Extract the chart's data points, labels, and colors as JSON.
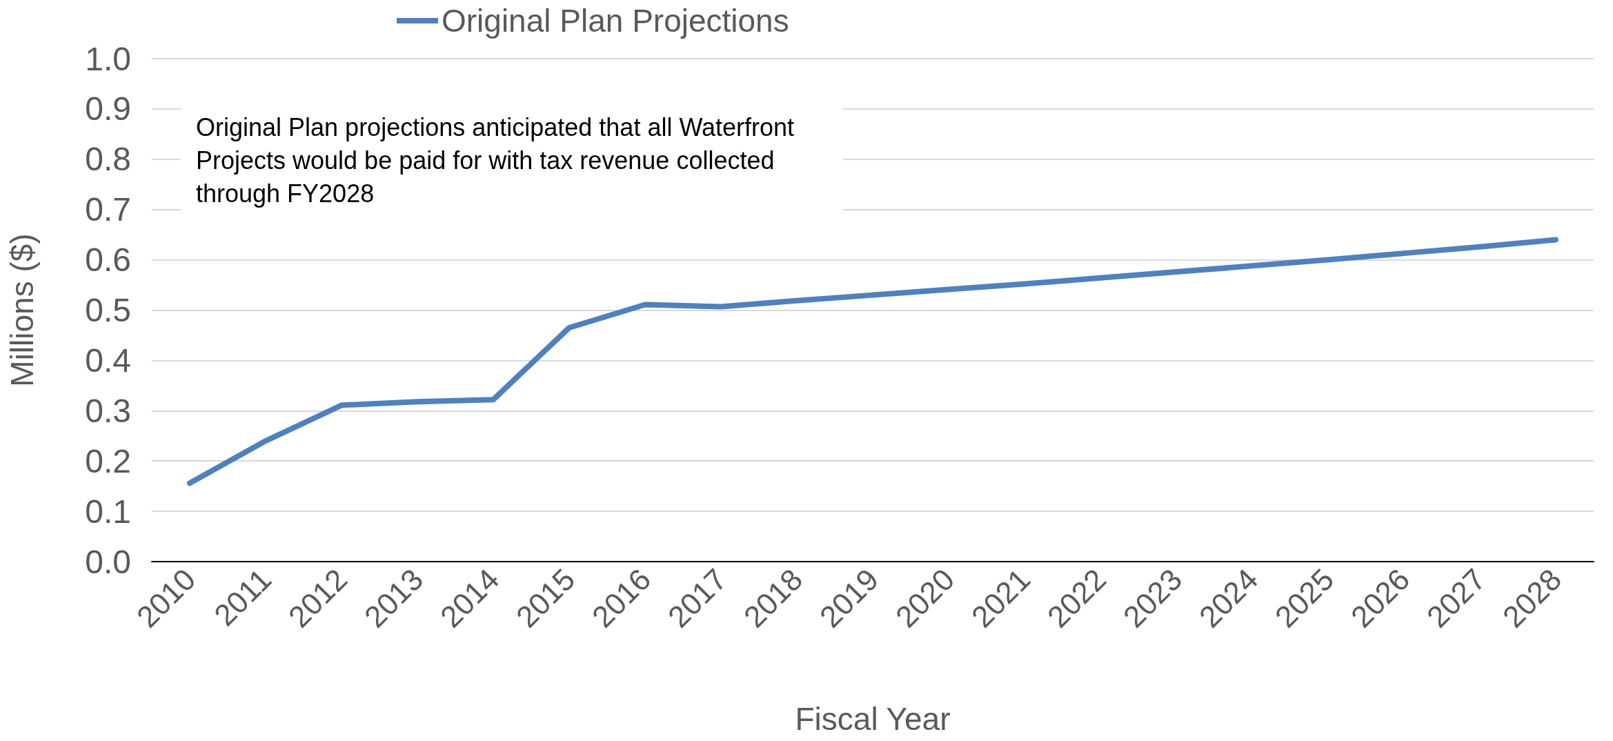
{
  "chart_data": {
    "type": "line",
    "xlabel": "Fiscal Year",
    "ylabel": "Millions ($)",
    "categories": [
      "2010",
      "2011",
      "2012",
      "2013",
      "2014",
      "2015",
      "2016",
      "2017",
      "2018",
      "2019",
      "2020",
      "2021",
      "2022",
      "2023",
      "2024",
      "2025",
      "2026",
      "2027",
      "2028"
    ],
    "series": [
      {
        "name": "Original Plan Projections",
        "color": "#4f81bd",
        "values": [
          0.156,
          0.24,
          0.311,
          0.318,
          0.322,
          0.465,
          0.511,
          0.507,
          0.519,
          0.53,
          0.541,
          0.552,
          0.564,
          0.576,
          0.588,
          0.6,
          0.613,
          0.626,
          0.64
        ]
      }
    ],
    "ylim": [
      0,
      1
    ],
    "yticks": [
      {
        "value": 0,
        "label": "0.0"
      },
      0.1,
      0.2,
      0.3,
      0.4,
      0.5,
      0.6,
      0.7,
      0.8,
      0.9,
      {
        "value": 1,
        "label": "1.0"
      }
    ],
    "annotations": [
      "Original Plan projections anticipated that all Waterfront Projects would be paid for with tax revenue collected through FY2028"
    ],
    "grid": "y",
    "legend": "top left",
    "marker": "none",
    "line_style": "solid"
  }
}
